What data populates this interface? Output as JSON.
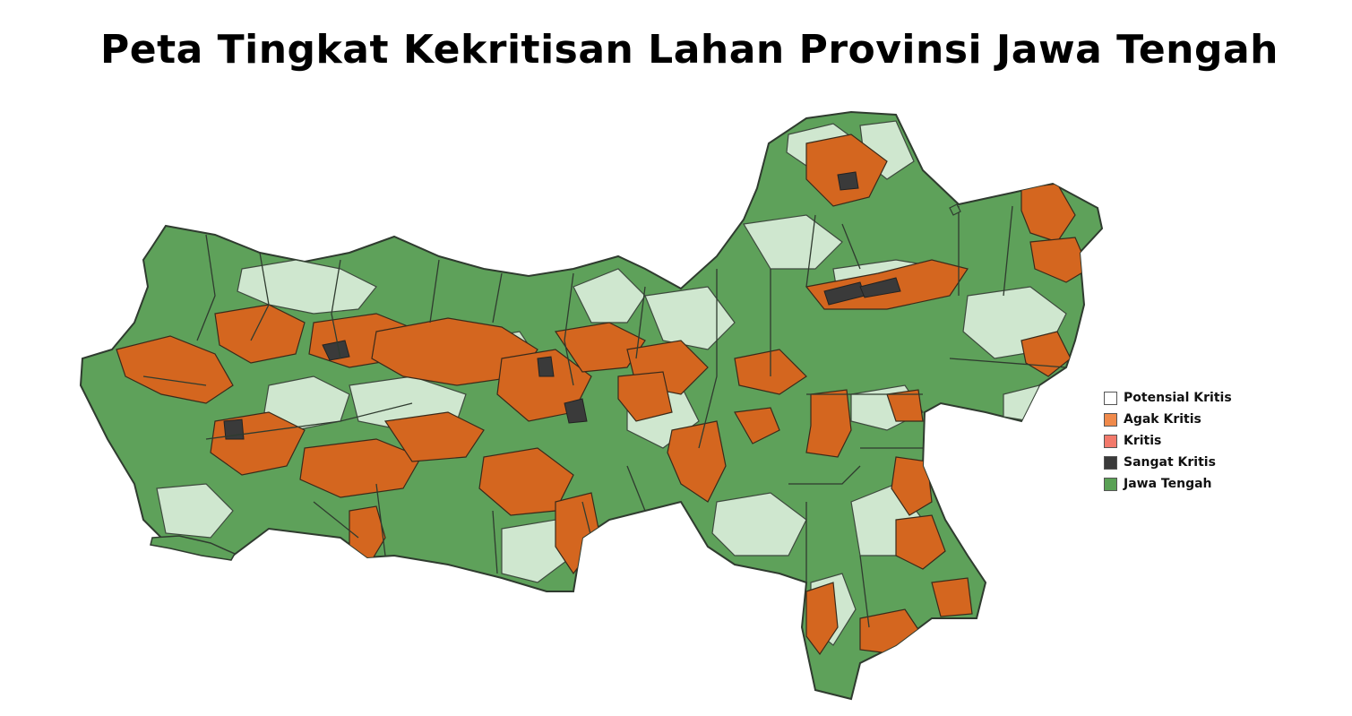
{
  "map": {
    "title": "Peta Tingkat Kekritisan Lahan Provinsi Jawa Tengah",
    "region": "Jawa Tengah"
  },
  "legend": {
    "items": [
      {
        "label": "Potensial Kritis",
        "color": "#ffffff"
      },
      {
        "label": "Agak Kritis",
        "color": "#f08a4b"
      },
      {
        "label": "Kritis",
        "color": "#f2796b"
      },
      {
        "label": "Sangat Kritis",
        "color": "#3a3a3a"
      },
      {
        "label": "Jawa Tengah",
        "color": "#5aa155"
      }
    ]
  },
  "colors": {
    "province_fill": "#5ea15a",
    "potential_fill": "#cfe7cf",
    "agak_kritis_fill": "#d4661f",
    "sangat_kritis_fill": "#3a3a3a",
    "boundary": "#2f3b2f"
  }
}
